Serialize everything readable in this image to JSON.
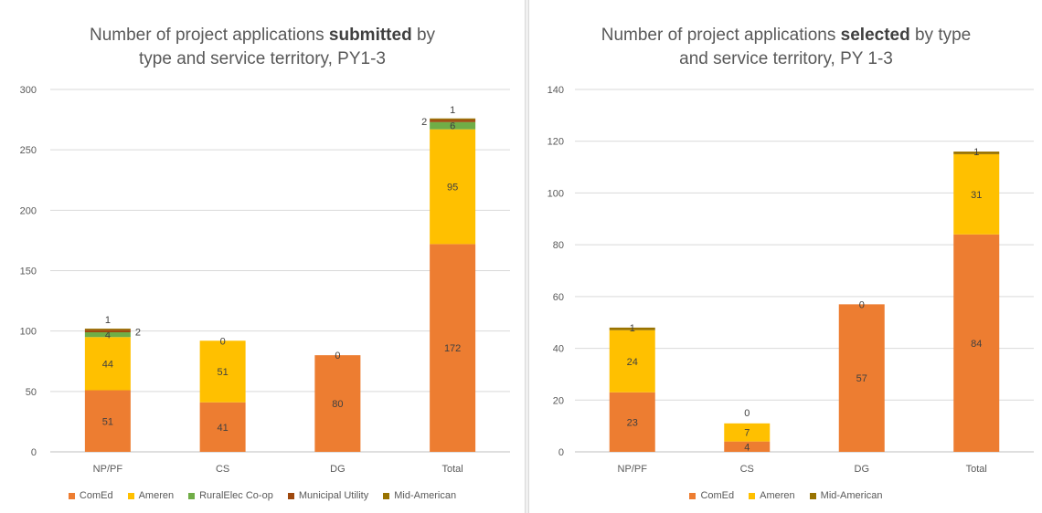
{
  "colors": {
    "ComEd": "#ed7d31",
    "Ameren": "#ffc000",
    "RuralElec Co-op": "#70ad47",
    "Municipal Utility": "#9e480e",
    "Mid-American": "#997300"
  },
  "chart_data": [
    {
      "type": "bar",
      "stacked": true,
      "title": {
        "before": "Number of project applications ",
        "bold": "submitted",
        "after": " by type and service territory, PY1-3"
      },
      "categories": [
        "NP/PF",
        "CS",
        "DG",
        "Total"
      ],
      "ylim": [
        0,
        300
      ],
      "yticks": [
        "0",
        "50",
        "100",
        "150",
        "200",
        "250",
        "300"
      ],
      "grid": true,
      "legend_position": "bottom",
      "series": [
        {
          "name": "ComEd",
          "values": [
            51,
            41,
            80,
            172
          ]
        },
        {
          "name": "Ameren",
          "values": [
            44,
            51,
            null,
            95
          ]
        },
        {
          "name": "RuralElec Co-op",
          "values": [
            4,
            null,
            null,
            6
          ]
        },
        {
          "name": "Municipal Utility",
          "values": [
            2,
            null,
            null,
            2
          ]
        },
        {
          "name": "Mid-American",
          "values": [
            1,
            0,
            0,
            1
          ]
        }
      ]
    },
    {
      "type": "bar",
      "stacked": true,
      "title": {
        "before": "Number of project applications ",
        "bold": "selected",
        "after": " by type and service territory, PY 1-3"
      },
      "categories": [
        "NP/PF",
        "CS",
        "DG",
        "Total"
      ],
      "ylim": [
        0,
        140
      ],
      "yticks": [
        "0",
        "20",
        "40",
        "60",
        "80",
        "100",
        "120",
        "140"
      ],
      "grid": true,
      "legend_position": "bottom",
      "series": [
        {
          "name": "ComEd",
          "values": [
            23,
            4,
            57,
            84
          ]
        },
        {
          "name": "Ameren",
          "values": [
            24,
            7,
            null,
            31
          ]
        },
        {
          "name": "Mid-American",
          "values": [
            1,
            0,
            0,
            1
          ]
        }
      ]
    }
  ]
}
